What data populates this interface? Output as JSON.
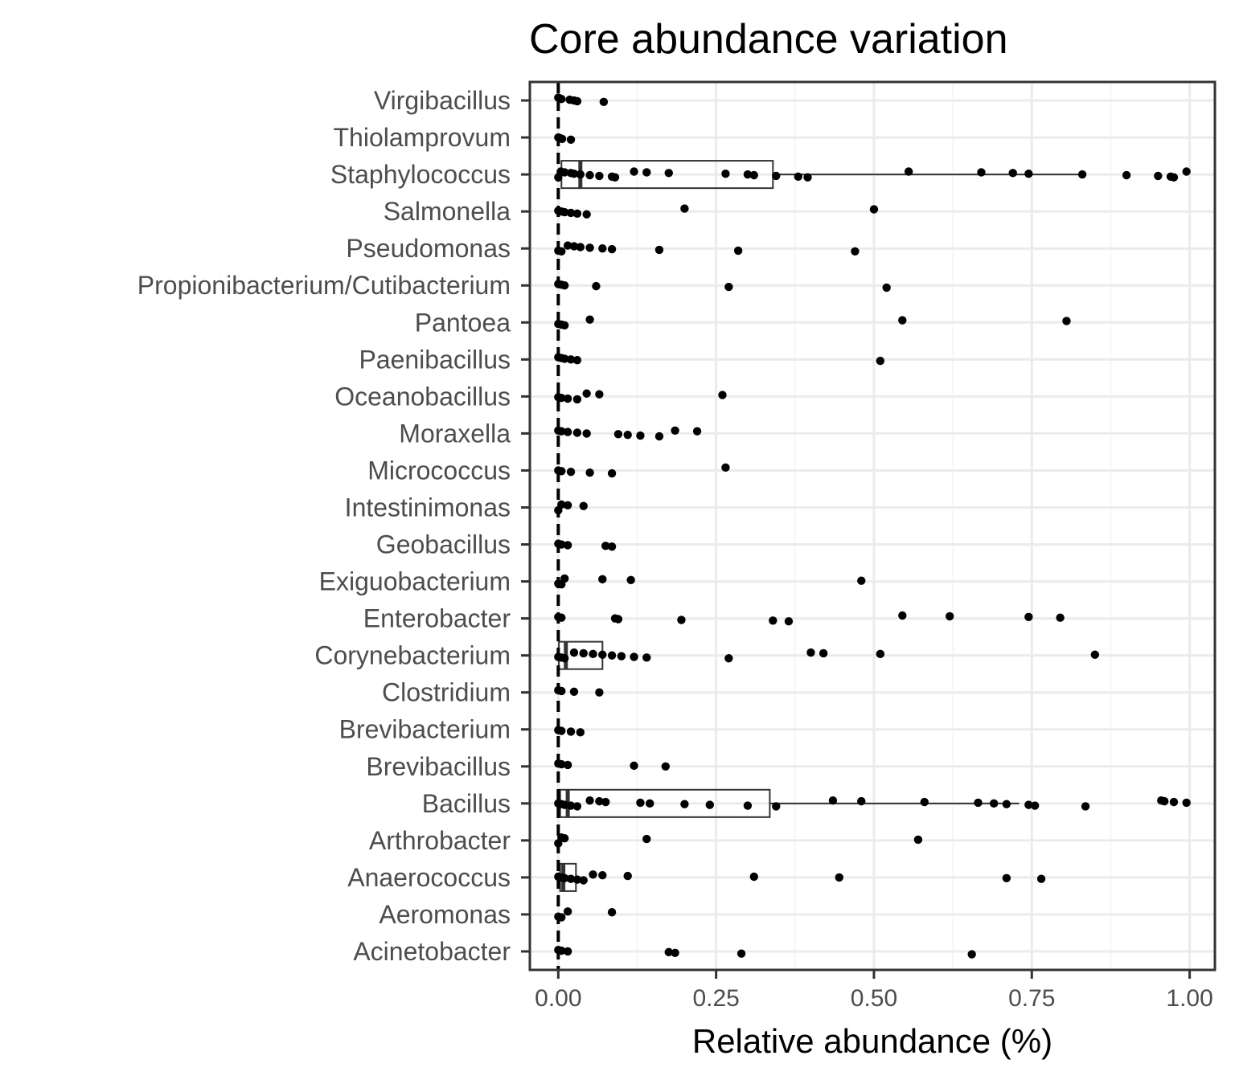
{
  "chart_data": {
    "type": "scatter",
    "title": "Core abundance variation",
    "xlabel": "Relative abundance (%)",
    "ylabel": "",
    "xlim": [
      -0.045,
      1.04
    ],
    "x_ticks": [
      0.0,
      0.25,
      0.5,
      0.75,
      1.0
    ],
    "x_tick_labels": [
      "0.00",
      "0.25",
      "0.50",
      "0.75",
      "1.00"
    ],
    "grid": true,
    "reference_line_x": 0,
    "categories": [
      "Virgibacillus",
      "Thiolamprovum",
      "Staphylococcus",
      "Salmonella",
      "Pseudomonas",
      "Propionibacterium/Cutibacterium",
      "Pantoea",
      "Paenibacillus",
      "Oceanobacillus",
      "Moraxella",
      "Micrococcus",
      "Intestinimonas",
      "Geobacillus",
      "Exiguobacterium",
      "Enterobacter",
      "Corynebacterium",
      "Clostridium",
      "Brevibacterium",
      "Brevibacillus",
      "Bacillus",
      "Arthrobacter",
      "Anaerococcus",
      "Aeromonas",
      "Acinetobacter"
    ],
    "boxes": [
      {
        "category": "Staphylococcus",
        "q1": 0.005,
        "median": 0.035,
        "q3": 0.34,
        "whisker_high": 0.825
      },
      {
        "category": "Corynebacterium",
        "q1": 0.001,
        "median": 0.012,
        "q3": 0.07,
        "whisker_high": 0.07
      },
      {
        "category": "Bacillus",
        "q1": 0.003,
        "median": 0.015,
        "q3": 0.335,
        "whisker_high": 0.73
      },
      {
        "category": "Anaerococcus",
        "q1": 0.003,
        "median": 0.008,
        "q3": 0.028,
        "whisker_high": 0.028
      }
    ],
    "points": {
      "Virgibacillus": [
        0.0,
        0.002,
        0.005,
        0.018,
        0.025,
        0.03,
        0.072
      ],
      "Thiolamprovum": [
        0.0,
        0.003,
        0.006,
        0.02
      ],
      "Staphylococcus": [
        0.0,
        0.004,
        0.01,
        0.02,
        0.025,
        0.035,
        0.05,
        0.065,
        0.085,
        0.09,
        0.12,
        0.14,
        0.175,
        0.265,
        0.3,
        0.31,
        0.345,
        0.38,
        0.395,
        0.555,
        0.67,
        0.72,
        0.745,
        0.83,
        0.9,
        0.95,
        0.97,
        0.975,
        0.995
      ],
      "Salmonella": [
        0.0,
        0.005,
        0.01,
        0.02,
        0.03,
        0.045,
        0.2,
        0.5
      ],
      "Pseudomonas": [
        0.0,
        0.005,
        0.015,
        0.025,
        0.035,
        0.05,
        0.07,
        0.085,
        0.16,
        0.285,
        0.47
      ],
      "Propionibacterium/Cutibacterium": [
        0.0,
        0.005,
        0.01,
        0.06,
        0.27,
        0.52
      ],
      "Pantoea": [
        0.0,
        0.005,
        0.01,
        0.05,
        0.545,
        0.805
      ],
      "Paenibacillus": [
        0.0,
        0.005,
        0.01,
        0.02,
        0.03,
        0.51
      ],
      "Oceanobacillus": [
        0.0,
        0.005,
        0.015,
        0.03,
        0.045,
        0.065,
        0.26
      ],
      "Moraxella": [
        0.0,
        0.005,
        0.015,
        0.03,
        0.045,
        0.095,
        0.11,
        0.13,
        0.16,
        0.185,
        0.22
      ],
      "Micrococcus": [
        0.0,
        0.005,
        0.02,
        0.05,
        0.085,
        0.265
      ],
      "Intestinimonas": [
        0.0,
        0.005,
        0.015,
        0.04
      ],
      "Geobacillus": [
        0.0,
        0.005,
        0.015,
        0.075,
        0.085
      ],
      "Exiguobacterium": [
        0.0,
        0.005,
        0.01,
        0.07,
        0.115,
        0.48
      ],
      "Enterobacter": [
        0.0,
        0.005,
        0.09,
        0.095,
        0.195,
        0.34,
        0.365,
        0.545,
        0.62,
        0.745,
        0.795
      ],
      "Corynebacterium": [
        0.0,
        0.005,
        0.01,
        0.025,
        0.04,
        0.055,
        0.07,
        0.085,
        0.1,
        0.12,
        0.14,
        0.27,
        0.4,
        0.42,
        0.51,
        0.85
      ],
      "Clostridium": [
        0.0,
        0.005,
        0.025,
        0.065
      ],
      "Brevibacterium": [
        0.0,
        0.005,
        0.02,
        0.035
      ],
      "Brevibacillus": [
        0.0,
        0.005,
        0.015,
        0.12,
        0.17
      ],
      "Bacillus": [
        0.0,
        0.005,
        0.01,
        0.02,
        0.03,
        0.05,
        0.065,
        0.075,
        0.13,
        0.145,
        0.2,
        0.24,
        0.3,
        0.345,
        0.435,
        0.48,
        0.58,
        0.665,
        0.69,
        0.71,
        0.745,
        0.755,
        0.835,
        0.955,
        0.96,
        0.975,
        0.995
      ],
      "Arthrobacter": [
        0.0,
        0.005,
        0.01,
        0.14,
        0.57
      ],
      "Anaerococcus": [
        0.0,
        0.005,
        0.01,
        0.02,
        0.03,
        0.04,
        0.055,
        0.07,
        0.11,
        0.31,
        0.445,
        0.71,
        0.765
      ],
      "Aeromonas": [
        0.0,
        0.005,
        0.015,
        0.085
      ],
      "Acinetobacter": [
        0.0,
        0.005,
        0.015,
        0.175,
        0.185,
        0.29,
        0.655
      ]
    }
  }
}
